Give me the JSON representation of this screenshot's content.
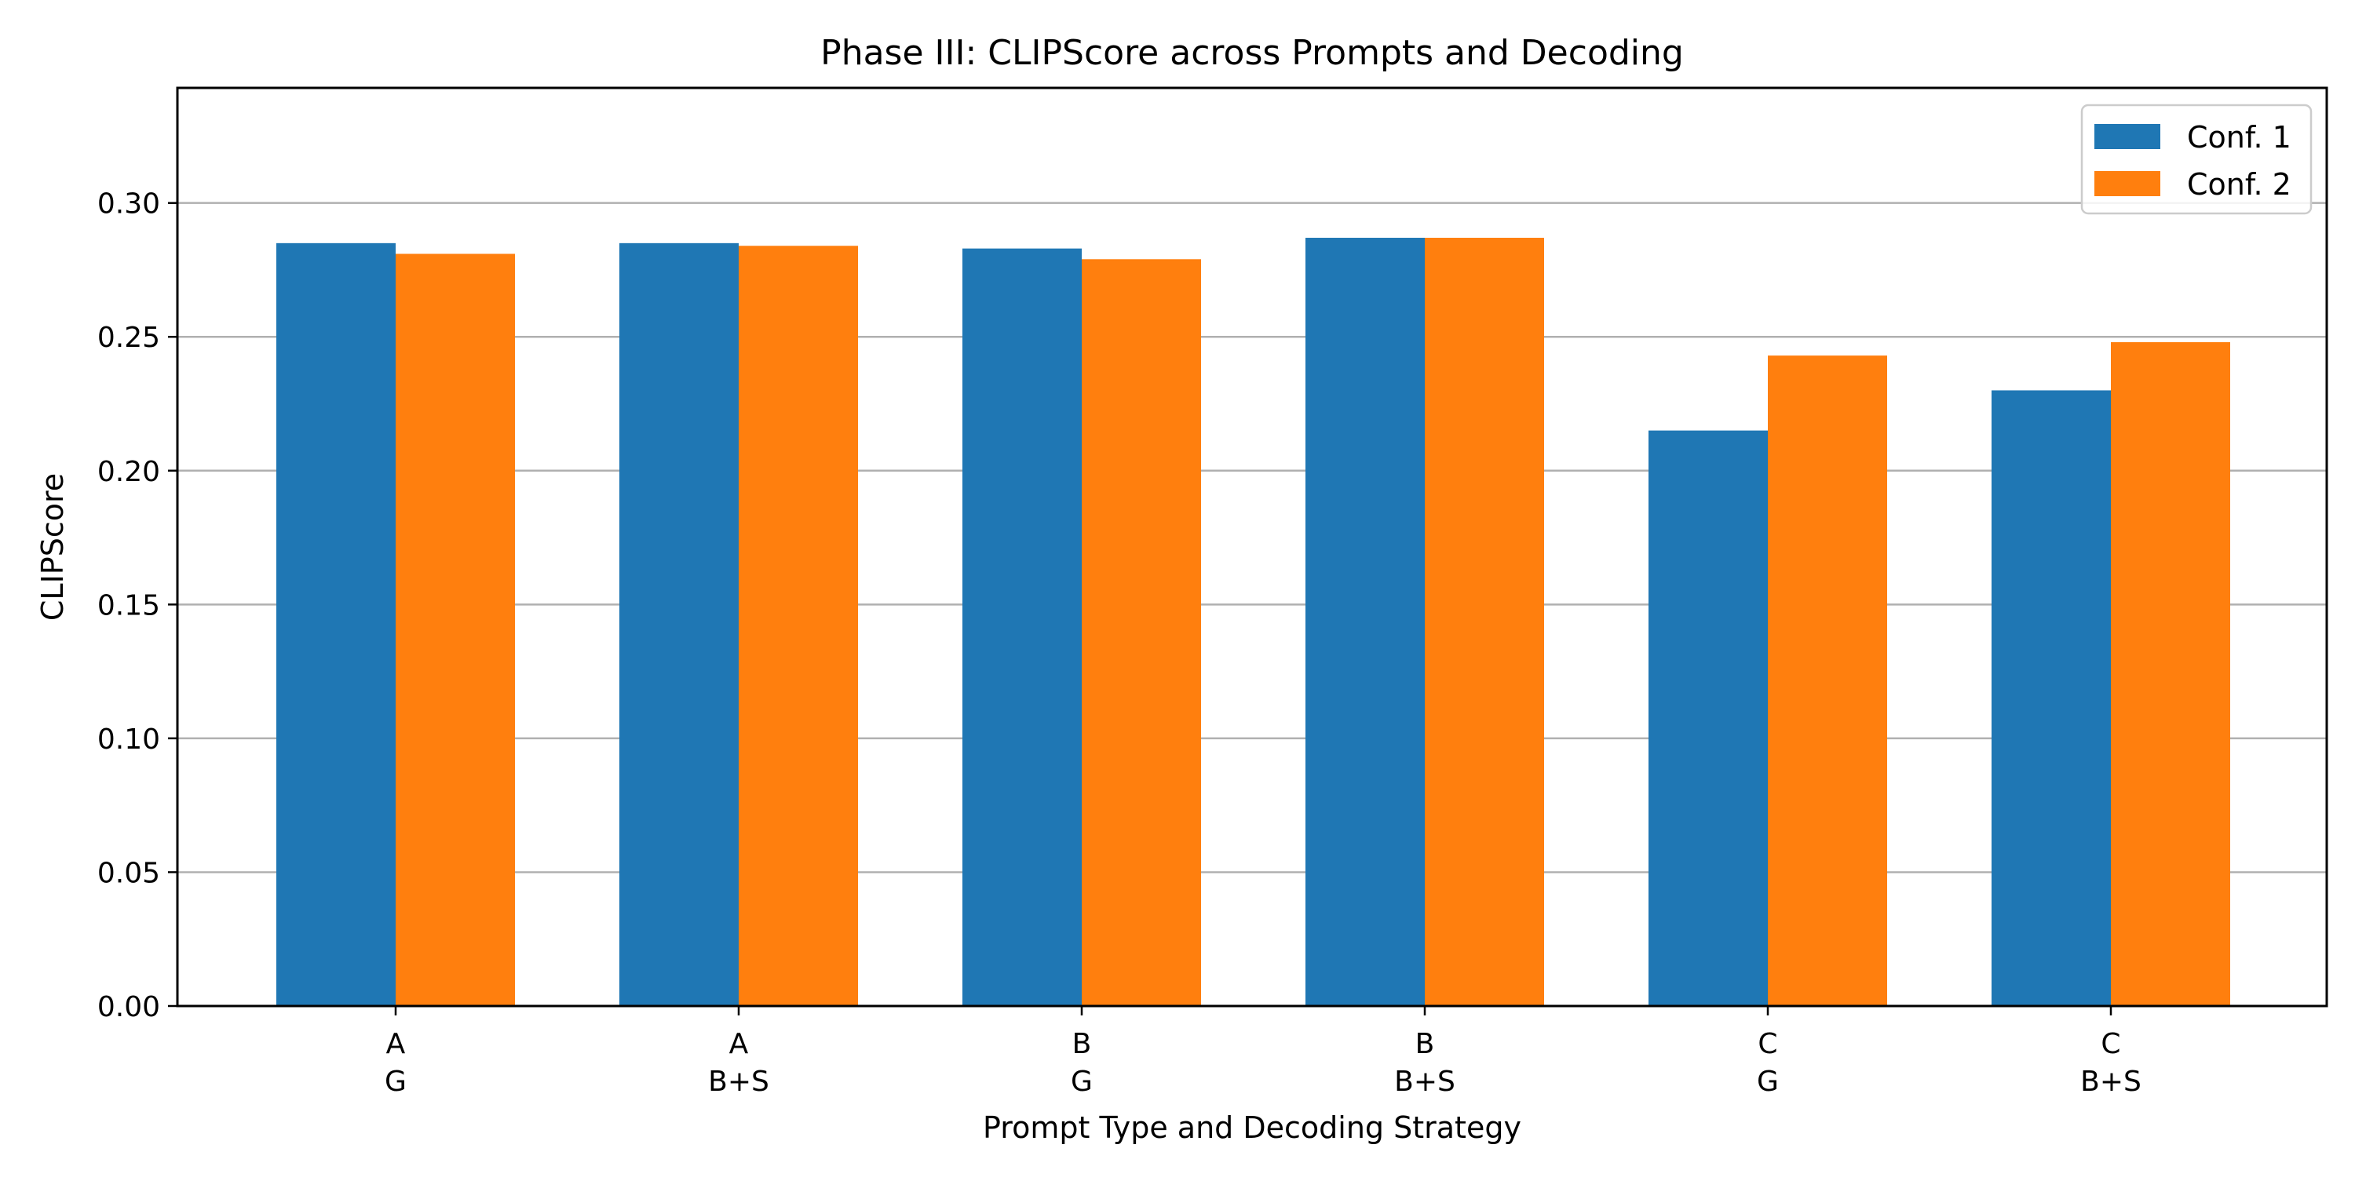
{
  "chart_data": {
    "type": "bar",
    "title": "Phase III: CLIPScore across Prompts and Decoding",
    "xlabel": "Prompt Type and Decoding Strategy",
    "ylabel": "CLIPScore",
    "ylim": [
      0,
      0.343
    ],
    "yticks": [
      "0.00",
      "0.05",
      "0.10",
      "0.15",
      "0.20",
      "0.25",
      "0.30"
    ],
    "yticks_values": [
      0,
      0.05,
      0.1,
      0.15,
      0.2,
      0.25,
      0.3
    ],
    "grid": "y-major",
    "legend_position": "top-right",
    "categories": [
      {
        "line1": "A",
        "line2": "G"
      },
      {
        "line1": "A",
        "line2": "B+S"
      },
      {
        "line1": "B",
        "line2": "G"
      },
      {
        "line1": "B",
        "line2": "B+S"
      },
      {
        "line1": "C",
        "line2": "G"
      },
      {
        "line1": "C",
        "line2": "B+S"
      }
    ],
    "series": [
      {
        "name": "Conf. 1",
        "color": "#1f77b4",
        "values": [
          0.285,
          0.285,
          0.283,
          0.287,
          0.215,
          0.23
        ]
      },
      {
        "name": "Conf. 2",
        "color": "#ff7f0e",
        "values": [
          0.281,
          0.284,
          0.279,
          0.287,
          0.243,
          0.248
        ]
      }
    ]
  }
}
